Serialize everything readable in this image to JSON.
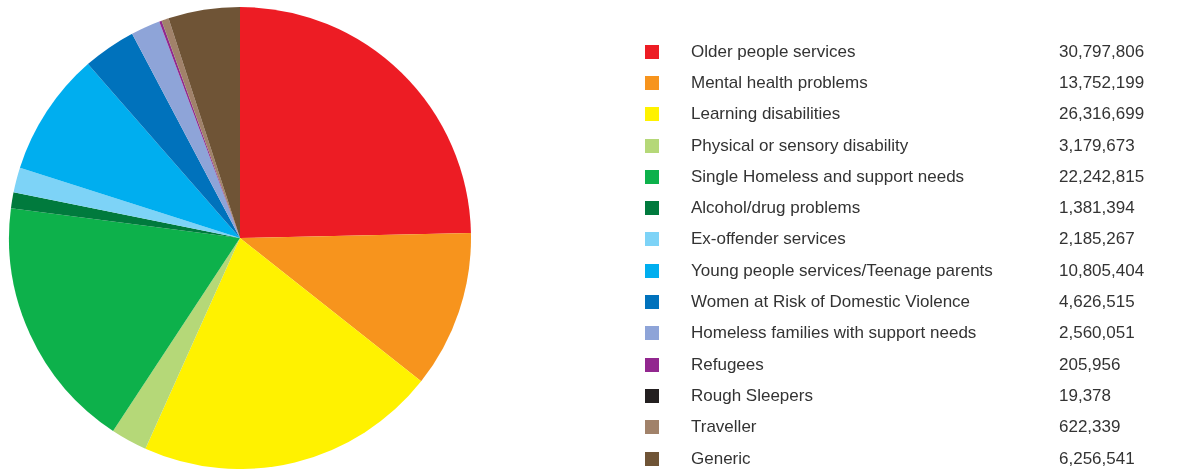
{
  "chart_data": {
    "type": "pie",
    "categories": [
      "Older people services",
      "Mental health problems",
      "Learning disabilities",
      "Physical or sensory disability",
      "Single Homeless and support needs",
      "Alcohol/drug problems",
      "Ex-offender services",
      "Young people services/Teenage parents",
      "Women at Risk of Domestic Violence",
      "Homeless families with support needs",
      "Refugees",
      "Rough Sleepers",
      "Traveller",
      "Generic"
    ],
    "values": [
      30797806,
      13752199,
      26316699,
      3179673,
      22242815,
      1381394,
      2185267,
      10805404,
      4626515,
      2560051,
      205956,
      19378,
      622339,
      6256541
    ],
    "colors": [
      "#ed1c24",
      "#f7941d",
      "#fff200",
      "#b5d878",
      "#0db14b",
      "#007a3d",
      "#7dd3f7",
      "#00aeef",
      "#0072bc",
      "#8ea4d8",
      "#92278f",
      "#231f20",
      "#a1826a",
      "#6f5436"
    ],
    "value_labels": [
      "30,797,806",
      "13,752,199",
      "26,316,699",
      "3,179,673",
      "22,242,815",
      "1,381,394",
      "2,185,267",
      "10,805,404",
      "4,626,515",
      "2,560,051",
      "205,956",
      "19,378",
      "622,339",
      "6,256,541"
    ],
    "legend": "right"
  }
}
